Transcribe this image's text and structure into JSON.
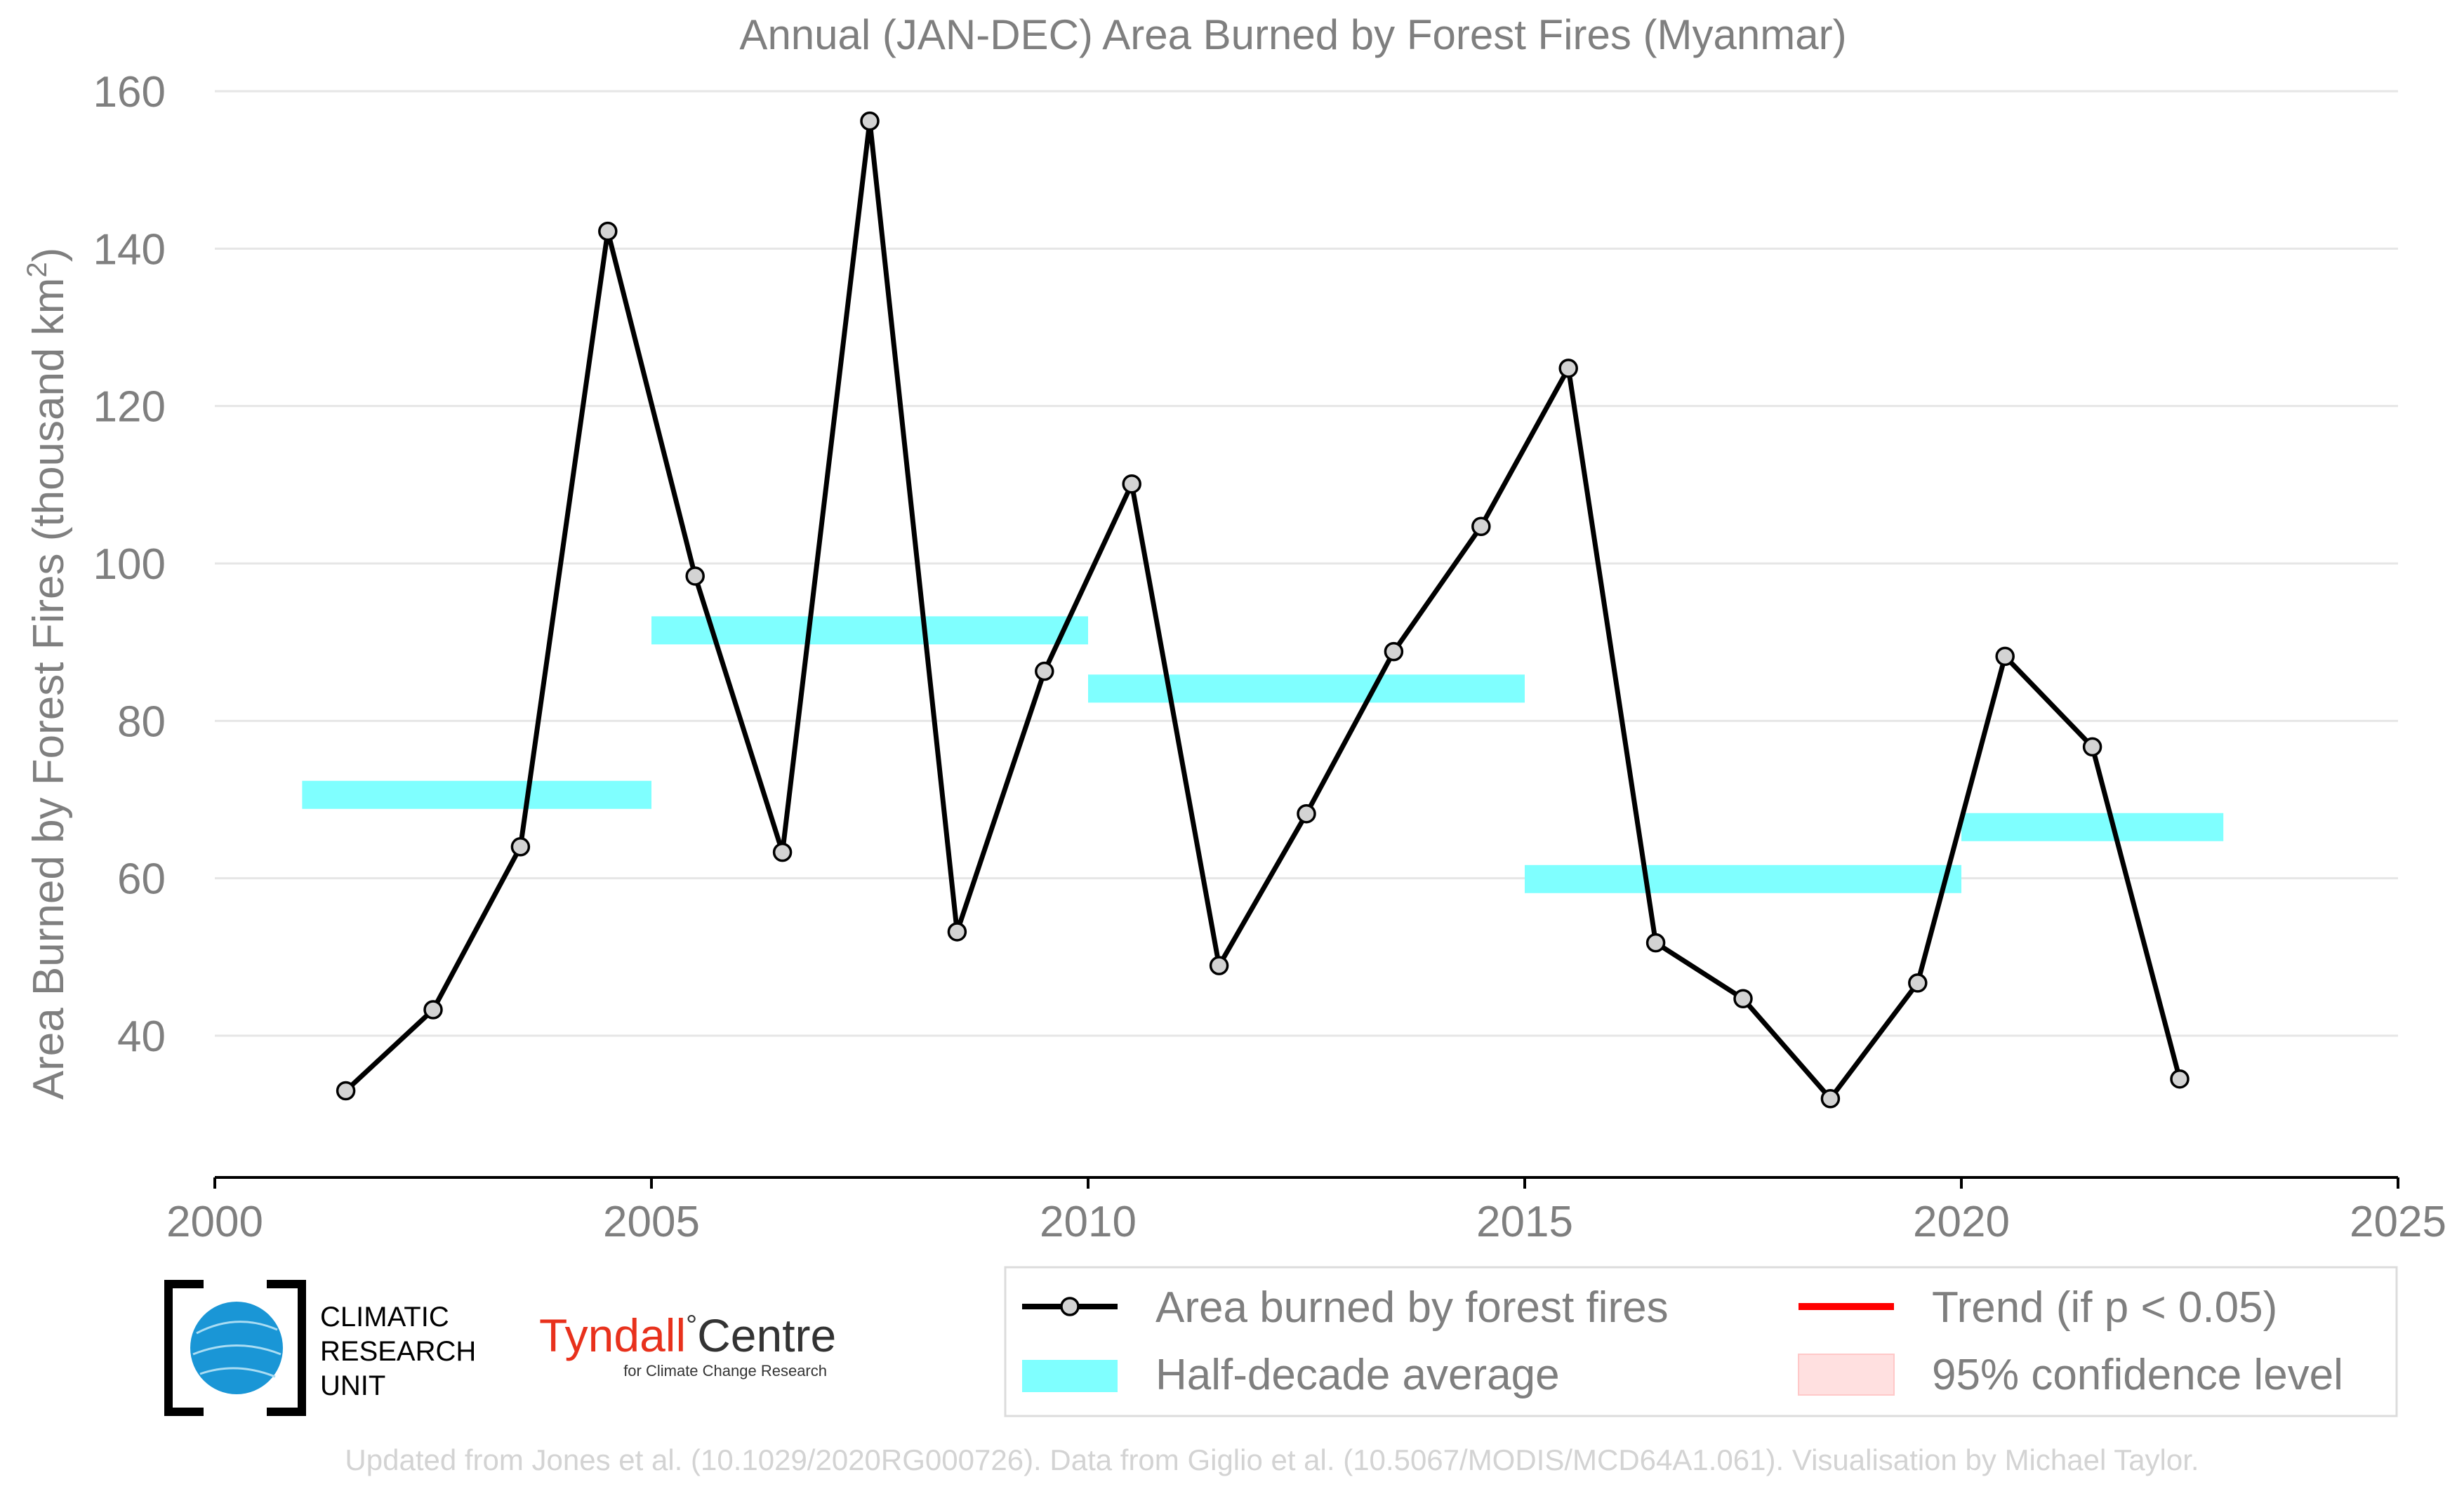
{
  "chart_data": {
    "type": "line",
    "title": "Annual (JAN-DEC) Area Burned by Forest Fires (Myanmar)",
    "xlabel": "",
    "ylabel_main": "Area Burned by Forest Fires (thousand km",
    "ylabel_sup": "2",
    "ylabel_close": ")",
    "xlim": [
      2000,
      2025
    ],
    "ylim": [
      22,
      160
    ],
    "x_ticks": [
      2000,
      2005,
      2010,
      2015,
      2020,
      2025
    ],
    "y_ticks": [
      40,
      60,
      80,
      100,
      120,
      140,
      160
    ],
    "grid": true,
    "series": [
      {
        "name": "Area burned by forest fires",
        "x": [
          2001.5,
          2002.5,
          2003.5,
          2004.5,
          2005.5,
          2006.5,
          2007.5,
          2008.5,
          2009.5,
          2010.5,
          2011.5,
          2012.5,
          2013.5,
          2014.5,
          2015.5,
          2016.5,
          2017.5,
          2018.5,
          2019.5,
          2020.5,
          2021.5,
          2022.5
        ],
        "y": [
          33,
          43.3,
          64,
          142.2,
          98.4,
          63.3,
          156.2,
          53.2,
          86.3,
          110.1,
          48.9,
          68.2,
          88.8,
          104.7,
          124.8,
          51.8,
          44.7,
          32,
          46.7,
          88.2,
          76.7,
          34.5
        ]
      },
      {
        "name": "Half-decade average",
        "segments": [
          {
            "x0": 2001,
            "x1": 2005,
            "y": 70.6
          },
          {
            "x0": 2005,
            "x1": 2010,
            "y": 91.5
          },
          {
            "x0": 2010,
            "x1": 2015,
            "y": 84.1
          },
          {
            "x0": 2015,
            "x1": 2020,
            "y": 59.9
          },
          {
            "x0": 2020,
            "x1": 2023,
            "y": 66.5
          }
        ]
      }
    ],
    "legend": {
      "placement": "bottom-right",
      "items": [
        {
          "label": "Area burned by forest fires",
          "style": "line-marker",
          "color": "#000000"
        },
        {
          "label": "Trend (if p < 0.05)",
          "style": "line",
          "color": "#ff0000"
        },
        {
          "label": "Half-decade average",
          "style": "band",
          "color": "#7fffff"
        },
        {
          "label": "95% confidence level",
          "style": "patch",
          "color": "#ffe0e0"
        }
      ]
    },
    "colors": {
      "line": "#000000",
      "marker_fill": "#d3d3d3",
      "band": "#7fffff",
      "grid": "#e6e6e6",
      "text": "#7f7f7f"
    }
  },
  "logos": {
    "cru": [
      "CLIMATIC",
      "RESEARCH",
      "UNIT"
    ],
    "tyndall_main": "Tyndall",
    "tyndall_degree": "°",
    "tyndall_centre": "Centre",
    "tyndall_sub": "for Climate Change Research"
  },
  "footer": "Updated from Jones et al. (10.1029/2020RG000726). Data from Giglio et al. (10.5067/MODIS/MCD64A1.061). Visualisation by Michael Taylor."
}
